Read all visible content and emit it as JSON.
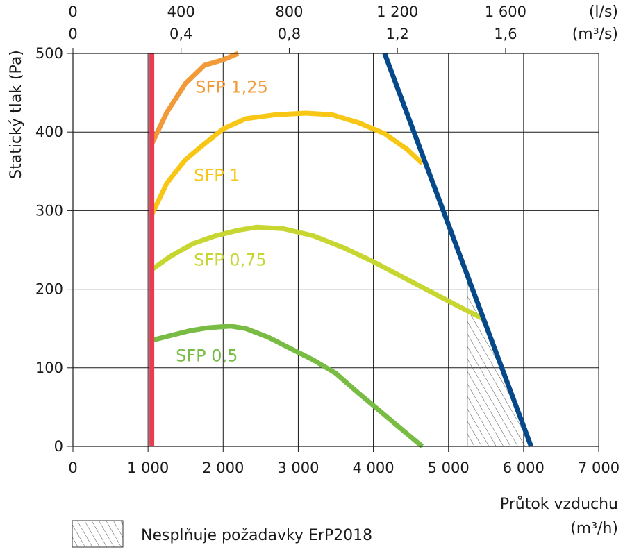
{
  "chart_data": {
    "type": "line",
    "title": "",
    "xlabel": "Průtok vzduchu",
    "xlabel_unit": "(m³/h)",
    "ylabel": "Statický tlak (Pa)",
    "xlim": [
      0,
      7000
    ],
    "ylim": [
      0,
      500
    ],
    "x_ticks": [
      "0",
      "1 000",
      "2 000",
      "3 000",
      "4 000",
      "5 000",
      "6 000",
      "7 000"
    ],
    "y_ticks": [
      "0",
      "100",
      "200",
      "300",
      "400",
      "500"
    ],
    "top_axis_ls": {
      "unit": "(l/s)",
      "ticks": [
        {
          "label": "0",
          "value": 0
        },
        {
          "label": "400",
          "value": 400
        },
        {
          "label": "800",
          "value": 800
        },
        {
          "label": "1 200",
          "value": 1200
        },
        {
          "label": "1 600",
          "value": 1600
        }
      ]
    },
    "top_axis_m3s": {
      "unit": "(m³/s)",
      "ticks": [
        {
          "label": "0",
          "value": 0
        },
        {
          "label": "0,4",
          "value": 0.4
        },
        {
          "label": "0,8",
          "value": 0.8
        },
        {
          "label": "1,2",
          "value": 1.2
        },
        {
          "label": "1,6",
          "value": 1.6
        }
      ]
    },
    "grid": true,
    "series": [
      {
        "name": "SFP 1,25",
        "color": "#F39A38",
        "points": [
          [
            1050,
            385
          ],
          [
            1250,
            425
          ],
          [
            1500,
            462
          ],
          [
            1750,
            485
          ],
          [
            2000,
            492
          ],
          [
            2200,
            500
          ]
        ]
      },
      {
        "name": "SFP 1",
        "color": "#F8C715",
        "points": [
          [
            1050,
            295
          ],
          [
            1250,
            335
          ],
          [
            1500,
            365
          ],
          [
            1750,
            385
          ],
          [
            2000,
            404
          ],
          [
            2300,
            417
          ],
          [
            2700,
            422
          ],
          [
            3100,
            424
          ],
          [
            3450,
            422
          ],
          [
            3800,
            412
          ],
          [
            4150,
            398
          ],
          [
            4450,
            378
          ],
          [
            4650,
            360
          ]
        ]
      },
      {
        "name": "SFP 0,75",
        "color": "#C7D631",
        "points": [
          [
            1050,
            225
          ],
          [
            1300,
            242
          ],
          [
            1600,
            258
          ],
          [
            1900,
            268
          ],
          [
            2200,
            275
          ],
          [
            2450,
            279
          ],
          [
            2800,
            277
          ],
          [
            3200,
            268
          ],
          [
            3600,
            253
          ],
          [
            4000,
            235
          ],
          [
            4400,
            215
          ],
          [
            4800,
            195
          ],
          [
            5200,
            175
          ],
          [
            5450,
            163
          ]
        ]
      },
      {
        "name": "SFP 0,5",
        "color": "#78BC43",
        "points": [
          [
            1050,
            135
          ],
          [
            1300,
            141
          ],
          [
            1550,
            147
          ],
          [
            1800,
            151
          ],
          [
            2100,
            153
          ],
          [
            2300,
            150
          ],
          [
            2600,
            139
          ],
          [
            2950,
            122
          ],
          [
            3200,
            110
          ],
          [
            3500,
            93
          ],
          [
            3800,
            68
          ],
          [
            4100,
            44
          ],
          [
            4400,
            20
          ],
          [
            4650,
            0
          ]
        ]
      },
      {
        "name": "",
        "color": "#E73C52",
        "points": [
          [
            1050,
            0
          ],
          [
            1050,
            500
          ]
        ]
      },
      {
        "name": "",
        "color": "#05498A",
        "points": [
          [
            4150,
            500
          ],
          [
            6100,
            0
          ]
        ]
      }
    ],
    "hatched_region": [
      [
        5250,
        210
      ],
      [
        5450,
        163
      ],
      [
        6100,
        0
      ],
      [
        5250,
        0
      ]
    ],
    "legend": {
      "label": "Nesplňuje požadavky ErP2018",
      "placement": "bottom-left"
    }
  }
}
